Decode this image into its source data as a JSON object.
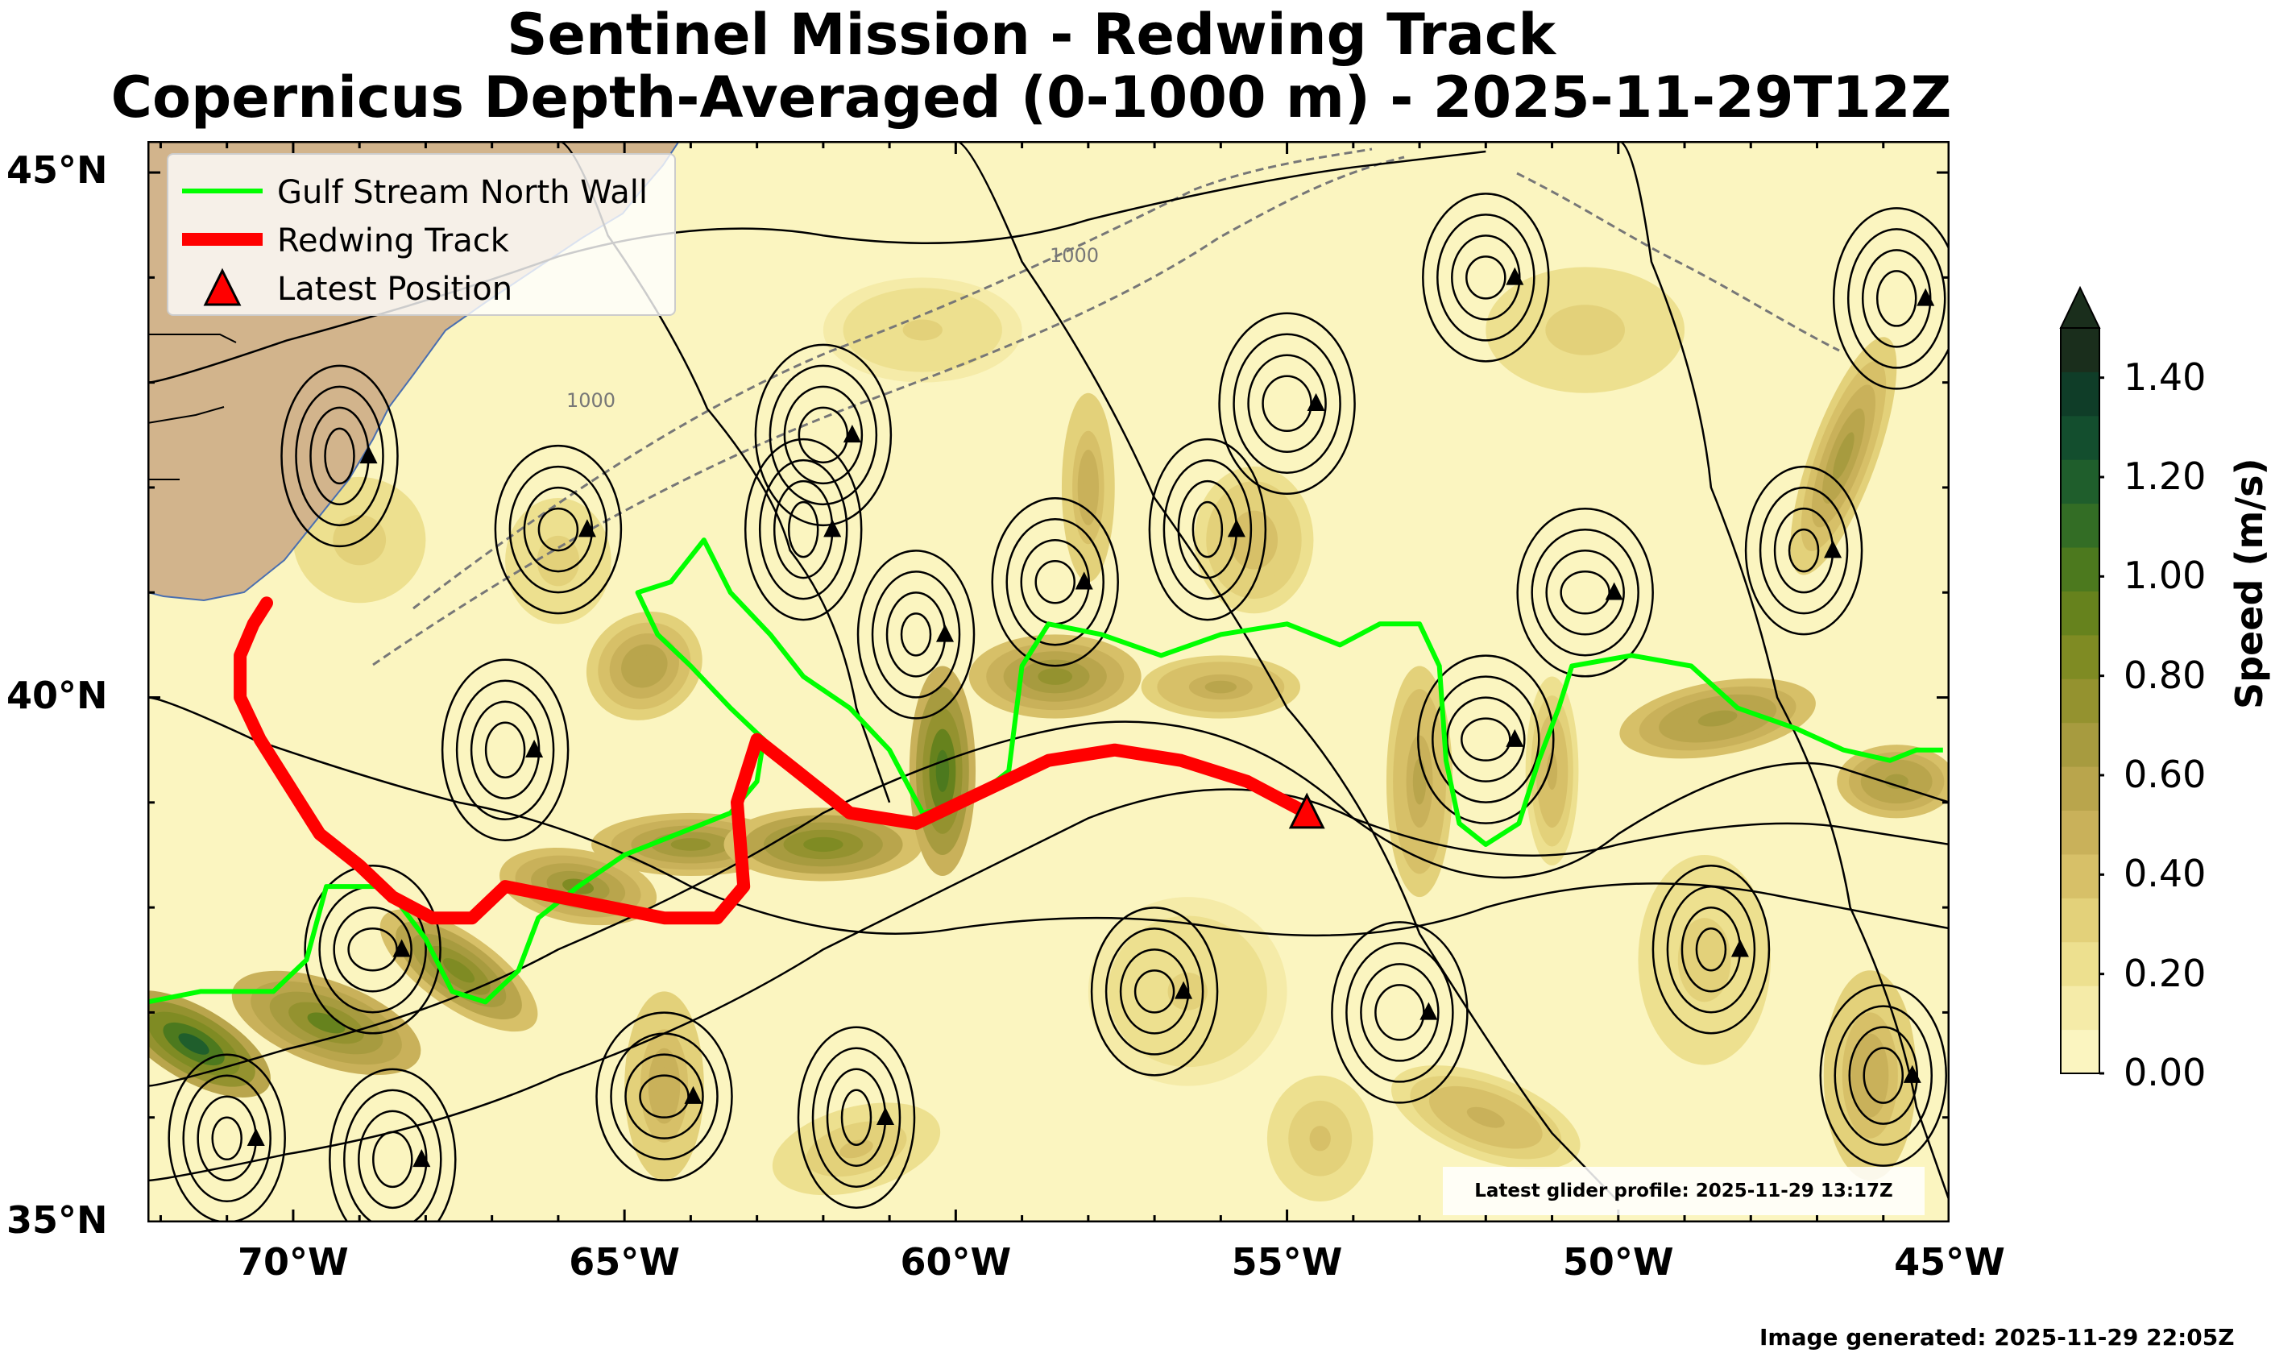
{
  "title_line1": "Sentinel Mission - Redwing Track",
  "title_line2": "Copernicus Depth-Averaged (0-1000 m) - 2025-11-29T12Z",
  "map": {
    "lon_range": [
      -72.2,
      -45.0
    ],
    "lat_range": [
      35.0,
      45.3
    ],
    "lon_ticks": [
      {
        "value": -70,
        "label": "70°W"
      },
      {
        "value": -65,
        "label": "65°W"
      },
      {
        "value": -60,
        "label": "60°W"
      },
      {
        "value": -55,
        "label": "55°W"
      },
      {
        "value": -50,
        "label": "50°W"
      },
      {
        "value": -45,
        "label": "45°W"
      }
    ],
    "lat_ticks": [
      {
        "value": 45,
        "label": "45°N"
      },
      {
        "value": 40,
        "label": "40°N"
      },
      {
        "value": 35,
        "label": "35°N"
      }
    ],
    "bathymetry_label": "1000",
    "colors": {
      "land": "#d2b48c",
      "low_speed": "#fbf5c0",
      "north_wall": "#00ff00",
      "track": "#ff0000",
      "streamline": "#000000"
    }
  },
  "legend": {
    "items": [
      {
        "label": "Gulf Stream North Wall",
        "symbol": "green-line"
      },
      {
        "label": "Redwing Track",
        "symbol": "red-line"
      },
      {
        "label": "Latest Position",
        "symbol": "red-triangle"
      }
    ]
  },
  "colorbar": {
    "label": "Speed (m/s)",
    "min": 0.0,
    "max": 1.5,
    "ticks": [
      "0.00",
      "0.20",
      "0.40",
      "0.60",
      "0.80",
      "1.00",
      "1.20",
      "1.40"
    ],
    "tick_values": [
      0.0,
      0.2,
      0.4,
      0.6,
      0.8,
      1.0,
      1.2,
      1.4
    ],
    "colors": [
      "#fbf5c0",
      "#f5eba8",
      "#ede08f",
      "#e3d17a",
      "#d7c068",
      "#c9b15a",
      "#b9a54c",
      "#a79b3f",
      "#94922f",
      "#7f8b23",
      "#66821d",
      "#4c791e",
      "#336d25",
      "#1f5e2c",
      "#134e2e",
      "#0f3d28",
      "#1a2e1c"
    ]
  },
  "track": {
    "points": [
      [
        -70.4,
        40.9
      ],
      [
        -70.6,
        40.7
      ],
      [
        -70.8,
        40.4
      ],
      [
        -70.8,
        40.0
      ],
      [
        -70.5,
        39.6
      ],
      [
        -70.1,
        39.2
      ],
      [
        -69.6,
        38.7
      ],
      [
        -69.0,
        38.4
      ],
      [
        -68.5,
        38.1
      ],
      [
        -67.9,
        37.9
      ],
      [
        -67.3,
        37.9
      ],
      [
        -66.8,
        38.2
      ],
      [
        -66.0,
        38.1
      ],
      [
        -65.2,
        38.0
      ],
      [
        -64.4,
        37.9
      ],
      [
        -63.6,
        37.9
      ],
      [
        -63.2,
        38.2
      ],
      [
        -63.3,
        39.0
      ],
      [
        -63.0,
        39.6
      ],
      [
        -62.4,
        39.3
      ],
      [
        -61.6,
        38.9
      ],
      [
        -60.6,
        38.8
      ],
      [
        -59.6,
        39.1
      ],
      [
        -58.6,
        39.4
      ],
      [
        -57.6,
        39.5
      ],
      [
        -56.6,
        39.4
      ],
      [
        -55.6,
        39.2
      ],
      [
        -54.7,
        38.9
      ]
    ],
    "latest_position": [
      -54.7,
      38.9
    ]
  },
  "north_wall": {
    "points": [
      [
        -72.2,
        37.1
      ],
      [
        -71.4,
        37.2
      ],
      [
        -70.3,
        37.2
      ],
      [
        -69.8,
        37.5
      ],
      [
        -69.5,
        38.2
      ],
      [
        -68.6,
        38.2
      ],
      [
        -68.0,
        37.7
      ],
      [
        -67.6,
        37.2
      ],
      [
        -67.1,
        37.1
      ],
      [
        -66.6,
        37.4
      ],
      [
        -66.3,
        37.9
      ],
      [
        -65.7,
        38.2
      ],
      [
        -65.0,
        38.5
      ],
      [
        -64.2,
        38.7
      ],
      [
        -63.4,
        38.9
      ],
      [
        -63.0,
        39.2
      ],
      [
        -62.9,
        39.6
      ],
      [
        -63.4,
        39.9
      ],
      [
        -64.0,
        40.3
      ],
      [
        -64.5,
        40.6
      ],
      [
        -64.8,
        41.0
      ],
      [
        -64.3,
        41.1
      ],
      [
        -63.8,
        41.5
      ],
      [
        -63.4,
        41.0
      ],
      [
        -62.8,
        40.6
      ],
      [
        -62.3,
        40.2
      ],
      [
        -61.6,
        39.9
      ],
      [
        -61.0,
        39.5
      ],
      [
        -60.5,
        38.9
      ],
      [
        -59.8,
        39.0
      ],
      [
        -59.2,
        39.3
      ],
      [
        -59.0,
        40.3
      ],
      [
        -58.6,
        40.7
      ],
      [
        -57.8,
        40.6
      ],
      [
        -56.9,
        40.4
      ],
      [
        -56.0,
        40.6
      ],
      [
        -55.0,
        40.7
      ],
      [
        -54.2,
        40.5
      ],
      [
        -53.6,
        40.7
      ],
      [
        -53.0,
        40.7
      ],
      [
        -52.7,
        40.3
      ],
      [
        -52.6,
        39.4
      ],
      [
        -52.4,
        38.8
      ],
      [
        -52.0,
        38.6
      ],
      [
        -51.5,
        38.8
      ],
      [
        -51.2,
        39.4
      ],
      [
        -50.9,
        39.9
      ],
      [
        -50.7,
        40.3
      ],
      [
        -49.8,
        40.4
      ],
      [
        -48.9,
        40.3
      ],
      [
        -48.2,
        39.9
      ],
      [
        -47.3,
        39.7
      ],
      [
        -46.6,
        39.5
      ],
      [
        -45.9,
        39.4
      ],
      [
        -45.5,
        39.5
      ],
      [
        -45.1,
        39.5
      ]
    ]
  },
  "profile_note": "Latest glider profile: 2025-11-29 13:17Z",
  "generated_note": "Image generated: 2025-11-29 22:05Z"
}
